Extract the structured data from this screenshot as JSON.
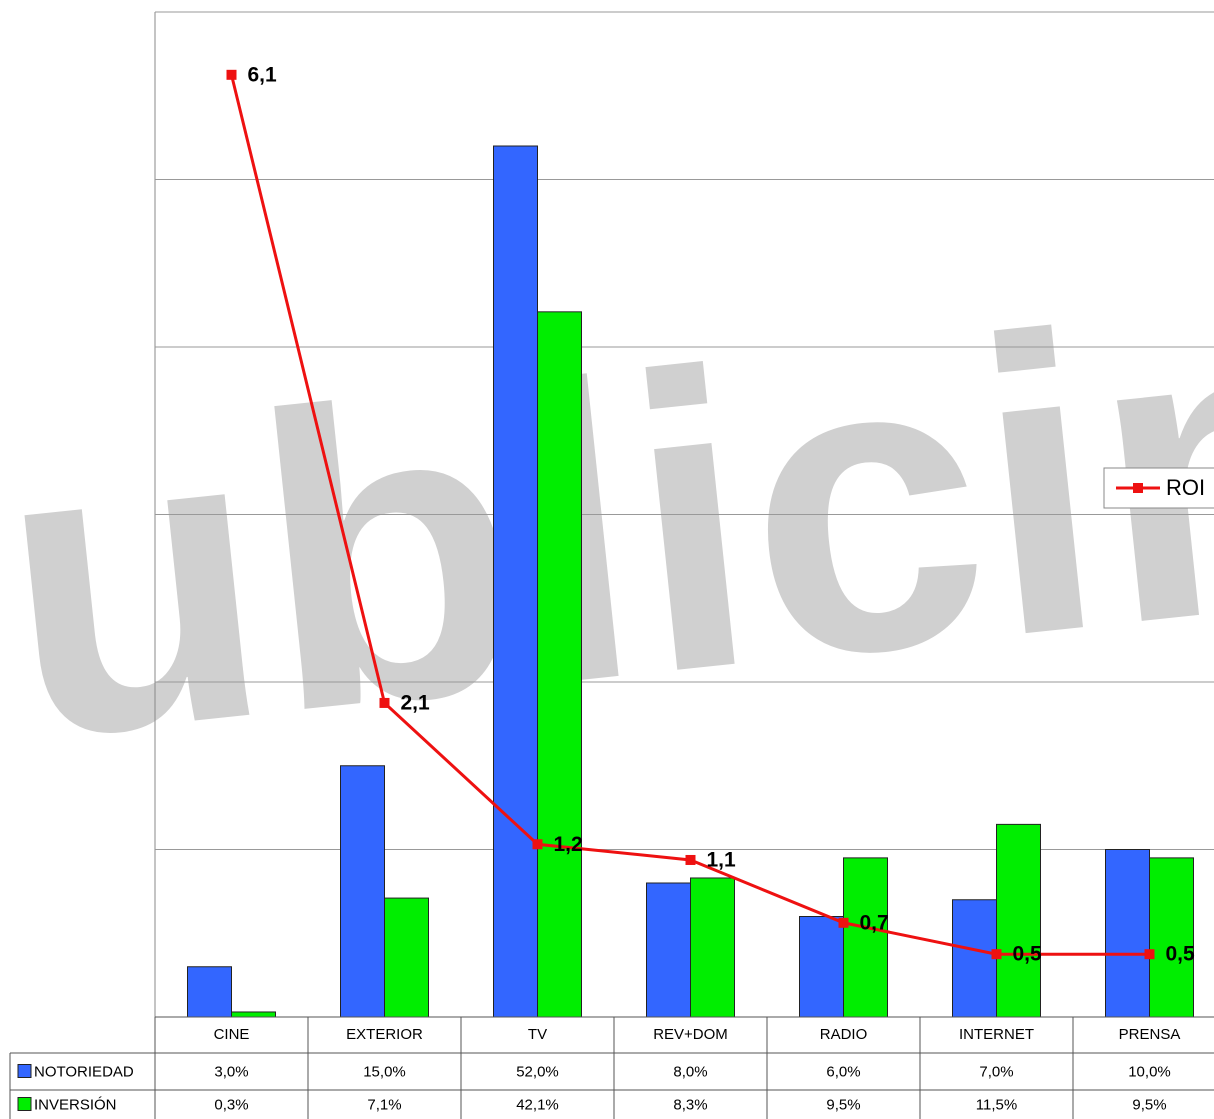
{
  "chart_data": {
    "type": "bar",
    "watermark": "Publicine",
    "categories": [
      "CINE",
      "EXTERIOR",
      "TV",
      "REV+DOM",
      "RADIO",
      "INTERNET",
      "PRENSA"
    ],
    "series": [
      {
        "name": "NOTORIEDAD",
        "color": "#3366ff",
        "type": "bar",
        "values": [
          3.0,
          15.0,
          52.0,
          8.0,
          6.0,
          7.0,
          10.0
        ],
        "value_labels": [
          "3,0%",
          "15,0%",
          "52,0%",
          "8,0%",
          "6,0%",
          "7,0%",
          "10,0%"
        ]
      },
      {
        "name": "INVERSIÓN",
        "color": "#00ee00",
        "type": "bar",
        "values": [
          0.3,
          7.1,
          42.1,
          8.3,
          9.5,
          11.5,
          9.5
        ],
        "value_labels": [
          "0,3%",
          "7,1%",
          "42,1%",
          "8,3%",
          "9,5%",
          "11,5%",
          "9,5%"
        ]
      },
      {
        "name": "ROI",
        "color": "#ee1111",
        "type": "line",
        "axis": "y2",
        "values": [
          6.1,
          2.1,
          1.2,
          1.1,
          0.7,
          0.5,
          0.5
        ],
        "value_labels": [
          "6,1",
          "2,1",
          "1,2",
          "1,1",
          "0,7",
          "0,5",
          "0,5"
        ]
      }
    ],
    "ylim": [
      0,
      60
    ],
    "yticks": [
      0,
      10,
      20,
      30,
      40,
      50,
      60
    ],
    "y2lim": [
      0.1,
      6.5
    ],
    "grid": true,
    "legend": "right"
  }
}
